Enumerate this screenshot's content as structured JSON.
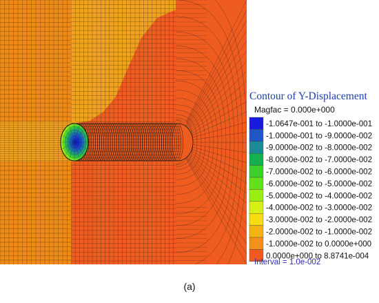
{
  "legend": {
    "title": "Contour of Y-Displacement",
    "magfac": "Magfac = 0.000e+000",
    "interval": "Interval = 1.0e-002",
    "entries": [
      {
        "label": "-1.0647e-001 to -1.0000e-001",
        "color": "#1a1adc"
      },
      {
        "label": "-1.0000e-001 to -9.0000e-002",
        "color": "#1f56c8"
      },
      {
        "label": "-9.0000e-002 to -8.0000e-002",
        "color": "#1c8a96"
      },
      {
        "label": "-8.0000e-002 to -7.0000e-002",
        "color": "#16b14f"
      },
      {
        "label": "-7.0000e-002 to -6.0000e-002",
        "color": "#3ad02a"
      },
      {
        "label": "-6.0000e-002 to -5.0000e-002",
        "color": "#63e21c"
      },
      {
        "label": "-5.0000e-002 to -4.0000e-002",
        "color": "#9aee14"
      },
      {
        "label": "-4.0000e-002 to -3.0000e-002",
        "color": "#d6f016"
      },
      {
        "label": "-3.0000e-002 to -2.0000e-002",
        "color": "#f8dc10"
      },
      {
        "label": "-2.0000e-002 to -1.0000e-002",
        "color": "#f6b414"
      },
      {
        "label": "-1.0000e-002 to  0.0000e+000",
        "color": "#f4911c"
      },
      {
        "label": " 0.0000e+000 to  8.8741e-004",
        "color": "#ef5a1e"
      }
    ]
  },
  "caption": "(a)",
  "colors": {
    "zone_far": "#f08a16",
    "zone_near": "#f0a11e",
    "zone_main": "#ef5c1f",
    "mesh_line": "#1a1a1a",
    "legend_title": "#1f3fa8",
    "interval_text": "#2a2ab8"
  }
}
